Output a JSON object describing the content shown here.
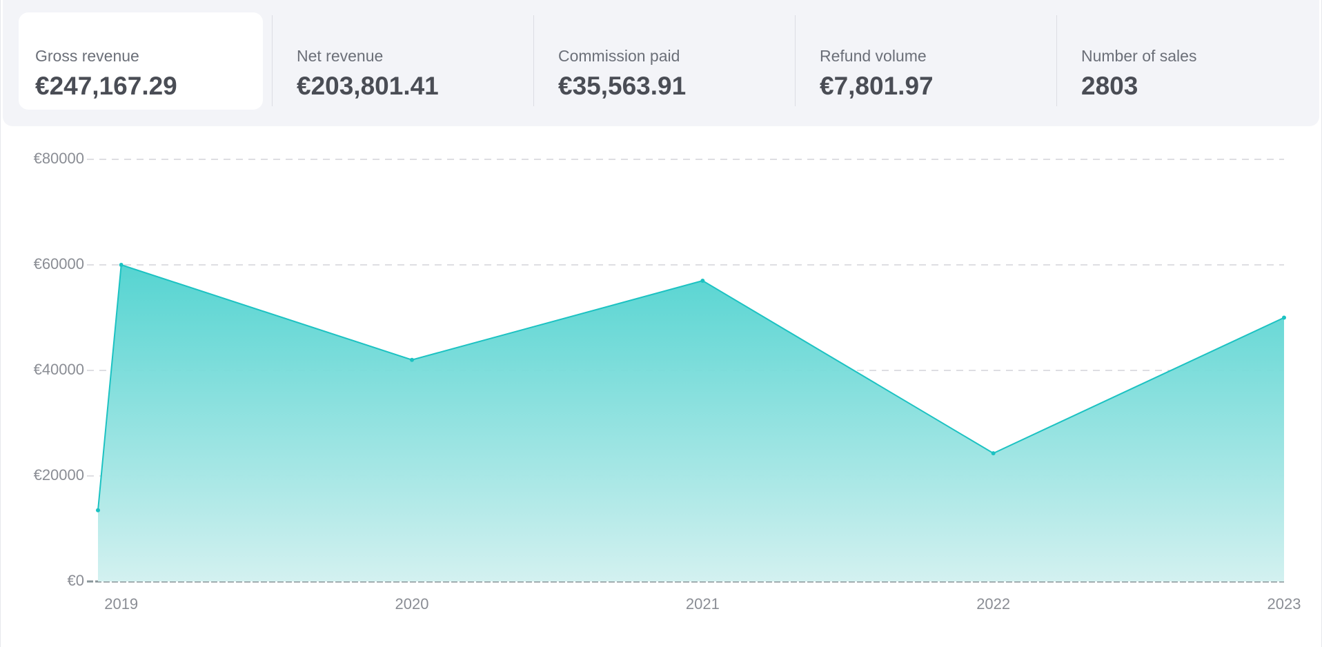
{
  "stats": [
    {
      "label": "Gross revenue",
      "value": "€247,167.29"
    },
    {
      "label": "Net revenue",
      "value": "€203,801.41"
    },
    {
      "label": "Commission paid",
      "value": "€35,563.91"
    },
    {
      "label": "Refund volume",
      "value": "€7,801.97"
    },
    {
      "label": "Number of sales",
      "value": "2803"
    }
  ],
  "chart_data": {
    "type": "area",
    "x": [
      2018.92,
      2019,
      2020,
      2021,
      2022,
      2023
    ],
    "values": [
      13500,
      60000,
      42000,
      57000,
      24300,
      50000
    ],
    "color": "#1cc2c2",
    "xlim": [
      2018.92,
      2023
    ],
    "xticks": [
      2019,
      2020,
      2021,
      2022,
      2023
    ],
    "ylim": [
      0,
      80000
    ],
    "yticks": [
      {
        "value": 0,
        "label": "€0"
      },
      {
        "value": 20000,
        "label": "€20000"
      },
      {
        "value": 40000,
        "label": "€40000"
      },
      {
        "value": 60000,
        "label": "€60000"
      },
      {
        "value": 80000,
        "label": "€80000"
      }
    ],
    "grid": true
  }
}
